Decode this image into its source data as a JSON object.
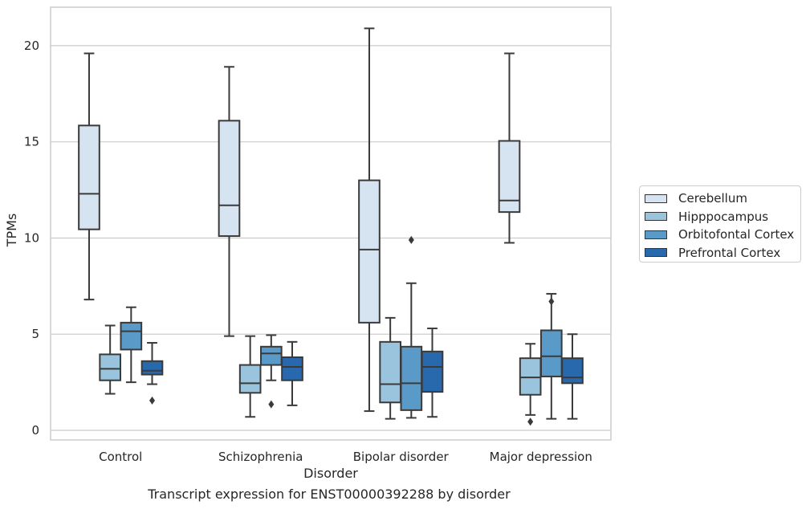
{
  "chart_data": {
    "type": "box",
    "caption": "Transcript expression for ENST00000392288 by disorder",
    "xlabel": "Disorder",
    "ylabel": "TPMs",
    "ylim": [
      -0.5,
      22
    ],
    "yticks": [
      0,
      5,
      10,
      15,
      20
    ],
    "grid": "horizontal",
    "legend_position": "right",
    "categories": [
      "Control",
      "Schizophrenia",
      "Bipolar disorder",
      "Major depression"
    ],
    "series": [
      {
        "name": "Cerebellum",
        "color": "#d6e3f1",
        "boxes": [
          {
            "whislo": 6.8,
            "q1": 10.45,
            "med": 12.3,
            "q3": 15.85,
            "whishi": 19.6,
            "fliers": []
          },
          {
            "whislo": 4.9,
            "q1": 10.1,
            "med": 11.7,
            "q3": 16.1,
            "whishi": 18.9,
            "fliers": []
          },
          {
            "whislo": 1.0,
            "q1": 5.6,
            "med": 9.4,
            "q3": 13.0,
            "whishi": 20.9,
            "fliers": []
          },
          {
            "whislo": 9.75,
            "q1": 11.35,
            "med": 11.95,
            "q3": 15.05,
            "whishi": 19.6,
            "fliers": []
          }
        ]
      },
      {
        "name": "Hipppocampus",
        "color": "#9ac4de",
        "boxes": [
          {
            "whislo": 1.9,
            "q1": 2.6,
            "med": 3.2,
            "q3": 3.95,
            "whishi": 5.45,
            "fliers": []
          },
          {
            "whislo": 0.7,
            "q1": 1.95,
            "med": 2.45,
            "q3": 3.4,
            "whishi": 4.9,
            "fliers": []
          },
          {
            "whislo": 0.6,
            "q1": 1.45,
            "med": 2.4,
            "q3": 4.6,
            "whishi": 5.85,
            "fliers": []
          },
          {
            "whislo": 0.8,
            "q1": 1.85,
            "med": 2.75,
            "q3": 3.75,
            "whishi": 4.5,
            "fliers": [
              0.45
            ]
          }
        ]
      },
      {
        "name": "Orbitofontal Cortex",
        "color": "#5a9ac9",
        "boxes": [
          {
            "whislo": 2.5,
            "q1": 4.2,
            "med": 5.15,
            "q3": 5.6,
            "whishi": 6.4,
            "fliers": []
          },
          {
            "whislo": 2.6,
            "q1": 3.4,
            "med": 4.0,
            "q3": 4.35,
            "whishi": 4.95,
            "fliers": [
              1.35
            ]
          },
          {
            "whislo": 0.65,
            "q1": 1.05,
            "med": 2.45,
            "q3": 4.35,
            "whishi": 7.65,
            "fliers": [
              9.9
            ]
          },
          {
            "whislo": 0.6,
            "q1": 2.8,
            "med": 3.85,
            "q3": 5.2,
            "whishi": 7.1,
            "fliers": [
              6.7
            ]
          }
        ]
      },
      {
        "name": "Prefrontal Cortex",
        "color": "#2868ad",
        "boxes": [
          {
            "whislo": 2.4,
            "q1": 2.9,
            "med": 3.1,
            "q3": 3.6,
            "whishi": 4.55,
            "fliers": [
              1.55
            ]
          },
          {
            "whislo": 1.3,
            "q1": 2.6,
            "med": 3.3,
            "q3": 3.8,
            "whishi": 4.6,
            "fliers": []
          },
          {
            "whislo": 0.7,
            "q1": 2.0,
            "med": 3.3,
            "q3": 4.1,
            "whishi": 5.3,
            "fliers": []
          },
          {
            "whislo": 0.6,
            "q1": 2.45,
            "med": 2.75,
            "q3": 3.75,
            "whishi": 5.0,
            "fliers": []
          }
        ]
      }
    ]
  }
}
